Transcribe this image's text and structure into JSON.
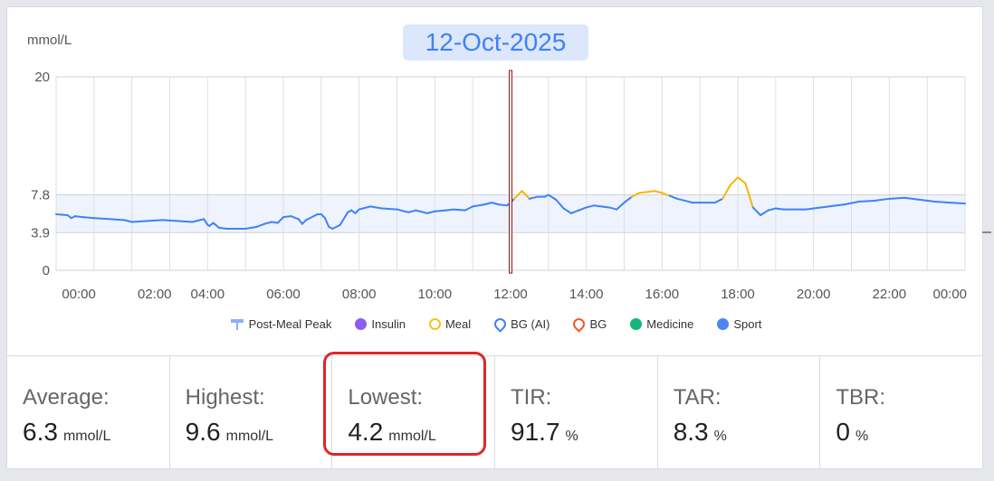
{
  "unit_label": "mmol/L",
  "date": "12-Oct-2025",
  "chart_data": {
    "type": "line",
    "title": "",
    "ylabel": "mmol/L",
    "ylim": [
      0,
      20
    ],
    "y_ticks": [
      "20",
      "7.8",
      "3.9",
      "0"
    ],
    "y_tick_values": [
      20,
      7.8,
      3.9,
      0
    ],
    "x_ticks": [
      "00:00",
      "02:00",
      "04:00",
      "06:00",
      "08:00",
      "10:00",
      "12:00",
      "14:00",
      "16:00",
      "18:00",
      "20:00",
      "22:00",
      "00:00"
    ],
    "x_tick_hours": [
      0.6,
      2.6,
      4,
      6,
      8,
      10,
      12,
      14,
      16,
      18,
      20,
      22,
      23.6
    ],
    "target_range": [
      3.9,
      7.8
    ],
    "cursor_time_hours": 12,
    "series": [
      {
        "color": "#3e82f7",
        "x": [
          0,
          0.3,
          0.4,
          0.5,
          0.7,
          1,
          1.4,
          1.8,
          2,
          2.4,
          2.8,
          3.2,
          3.6,
          3.8,
          3.9,
          4,
          4.05,
          4.15,
          4.3,
          4.5,
          4.8,
          5,
          5.3,
          5.5,
          5.7,
          5.85,
          6,
          6.2,
          6.4,
          6.5,
          6.6,
          6.8,
          6.9,
          7,
          7.1,
          7.2,
          7.3,
          7.5,
          7.7,
          7.8,
          7.9,
          8,
          8.3,
          8.6,
          9,
          9.3,
          9.5,
          9.8,
          10,
          10.3,
          10.5,
          10.8,
          11,
          11.3,
          11.5,
          11.7,
          11.9,
          12,
          12.1,
          12.3,
          12.5,
          12.7,
          12.9,
          13,
          13.2,
          13.4,
          13.6,
          13.8,
          14,
          14.2,
          14.4,
          14.6,
          14.8,
          15,
          15.2,
          15.4,
          15.6,
          15.8,
          16,
          16.2,
          16.4,
          16.6,
          16.8,
          17,
          17.2,
          17.4,
          17.6,
          17.8,
          18,
          18.2,
          18.4,
          18.6,
          18.8,
          19,
          19.2,
          19.4,
          19.6,
          19.8,
          20,
          20.4,
          20.8,
          21.2,
          21.6,
          22,
          22.4,
          22.8,
          23.2,
          23.6,
          24
        ],
        "y": [
          5.8,
          5.7,
          5.4,
          5.6,
          5.5,
          5.4,
          5.3,
          5.2,
          5.0,
          5.1,
          5.2,
          5.1,
          5.0,
          5.2,
          5.3,
          4.7,
          4.6,
          4.9,
          4.4,
          4.3,
          4.3,
          4.3,
          4.5,
          4.8,
          5.0,
          4.9,
          5.5,
          5.6,
          5.3,
          4.8,
          5.2,
          5.6,
          5.8,
          5.8,
          5.4,
          4.5,
          4.3,
          4.7,
          6.0,
          6.2,
          5.9,
          6.3,
          6.6,
          6.4,
          6.3,
          6.0,
          6.2,
          5.9,
          6.1,
          6.2,
          6.3,
          6.2,
          6.6,
          6.8,
          7.0,
          6.8,
          6.7,
          7.0,
          7.4,
          8.2,
          7.4,
          7.6,
          7.6,
          7.8,
          7.3,
          6.4,
          5.9,
          6.2,
          6.5,
          6.7,
          6.6,
          6.5,
          6.3,
          7.0,
          7.6,
          8.0,
          8.1,
          8.2,
          8.0,
          7.7,
          7.4,
          7.2,
          7.0,
          7.0,
          7.0,
          7.0,
          7.4,
          8.8,
          9.6,
          9.0,
          6.5,
          5.7,
          6.2,
          6.4,
          6.3,
          6.3,
          6.3,
          6.3,
          6.4,
          6.6,
          6.8,
          7.1,
          7.2,
          7.4,
          7.5,
          7.3,
          7.1,
          7.0,
          6.9
        ]
      }
    ],
    "legend": [
      {
        "label": "Post-Meal Peak",
        "icon": "post-meal-peak-icon",
        "color": "#8aaefc"
      },
      {
        "label": "Insulin",
        "icon": "insulin-icon",
        "color": "#8b5cf6"
      },
      {
        "label": "Meal",
        "icon": "meal-icon",
        "color": "#f5c11a"
      },
      {
        "label": "BG (AI)",
        "icon": "bg-ai-icon",
        "color": "#3e82f7"
      },
      {
        "label": "BG",
        "icon": "bg-icon",
        "color": "#f05a28"
      },
      {
        "label": "Medicine",
        "icon": "medicine-icon",
        "color": "#16b57a"
      },
      {
        "label": "Sport",
        "icon": "sport-icon",
        "color": "#4a86f7"
      }
    ],
    "colors": {
      "line": "#3e82f7",
      "above_target": "#f5b50a",
      "band": "#eef3fd",
      "cursor": "#9b0f0f"
    }
  },
  "stats": [
    {
      "label": "Average:",
      "value": "6.3",
      "unit": "mmol/L"
    },
    {
      "label": "Highest:",
      "value": "9.6",
      "unit": "mmol/L"
    },
    {
      "label": "Lowest:",
      "value": "4.2",
      "unit": "mmol/L"
    },
    {
      "label": "TIR:",
      "value": "91.7",
      "unit": "%"
    },
    {
      "label": "TAR:",
      "value": "8.3",
      "unit": "%"
    },
    {
      "label": "TBR:",
      "value": "0",
      "unit": "%"
    }
  ]
}
